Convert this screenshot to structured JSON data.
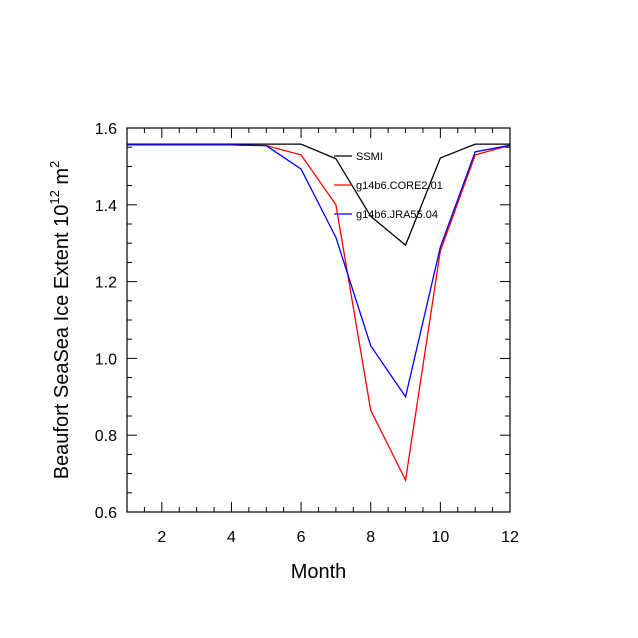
{
  "chart_data": {
    "type": "line",
    "title": "",
    "xlabel": "Month",
    "ylabel_main": "Beaufort SeaSea Ice Extent 10",
    "ylabel_sup1": "12",
    "ylabel_unit": " m",
    "ylabel_sup2": "2",
    "xlim": [
      1,
      12
    ],
    "ylim": [
      0.6,
      1.6
    ],
    "xticks": [
      2,
      4,
      6,
      8,
      10,
      12
    ],
    "xtick_labels": [
      "2",
      "4",
      "6",
      "8",
      "10",
      "12"
    ],
    "yticks": [
      0.6,
      0.8,
      1.0,
      1.2,
      1.4,
      1.6
    ],
    "ytick_labels": [
      "0.6",
      "0.8",
      "1.0",
      "1.2",
      "1.4",
      "1.6"
    ],
    "grid": false,
    "legend_position": "top-right",
    "x": [
      1,
      2,
      3,
      4,
      5,
      6,
      7,
      8,
      9,
      10,
      11,
      12
    ],
    "series": [
      {
        "name": "SSMI",
        "color": "#000000",
        "values": [
          1.558,
          1.558,
          1.558,
          1.558,
          1.558,
          1.558,
          1.52,
          1.37,
          1.295,
          1.522,
          1.558,
          1.558
        ]
      },
      {
        "name": "g14b6.CORE2.01",
        "color": "#ff0000",
        "values": [
          1.556,
          1.556,
          1.556,
          1.556,
          1.554,
          1.53,
          1.4,
          0.865,
          0.683,
          1.28,
          1.53,
          1.555
        ]
      },
      {
        "name": "g14b6.JRA55.04",
        "color": "#0000ff",
        "values": [
          1.556,
          1.556,
          1.556,
          1.556,
          1.554,
          1.493,
          1.315,
          1.033,
          0.9,
          1.29,
          1.538,
          1.555
        ]
      }
    ]
  }
}
